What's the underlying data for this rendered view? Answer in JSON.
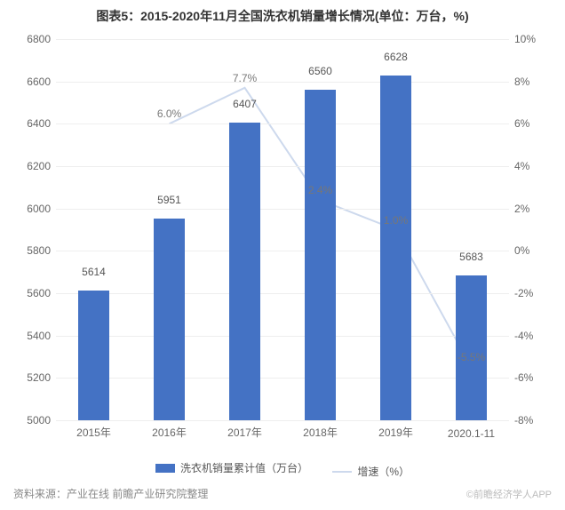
{
  "title": "图表5：2015-2020年11月全国洗衣机销量增长情况(单位：万台，%)",
  "title_fontsize": 14,
  "source": "资料来源：产业在线 前瞻产业研究院整理",
  "watermark": "©前瞻经济学人APP",
  "chart": {
    "type": "bar+line",
    "categories": [
      "2015年",
      "2016年",
      "2017年",
      "2018年",
      "2019年",
      "2020.1-11"
    ],
    "bar_values": [
      5614,
      5951,
      6407,
      6560,
      6628,
      5683
    ],
    "line_values": [
      null,
      6.0,
      7.7,
      2.4,
      1.0,
      -5.5
    ],
    "line_labels": [
      "",
      "6.0%",
      "7.7%",
      "2.4%",
      "1.0%",
      "-5.5%"
    ],
    "bar_color": "#4472c4",
    "line_color": "#cdd9ed",
    "y1_min": 5000,
    "y1_max": 6800,
    "y1_step": 200,
    "y2_min": -8,
    "y2_max": 10,
    "y2_step": 2,
    "bar_width_pct": 42,
    "grid_color": "#eeeeee",
    "axis_color": "#cccccc",
    "tick_fontsize": 12,
    "label_fontsize": 12,
    "line_width": 2
  },
  "legend": {
    "bar": "洗衣机销量累计值（万台）",
    "line": "增速（%）"
  }
}
